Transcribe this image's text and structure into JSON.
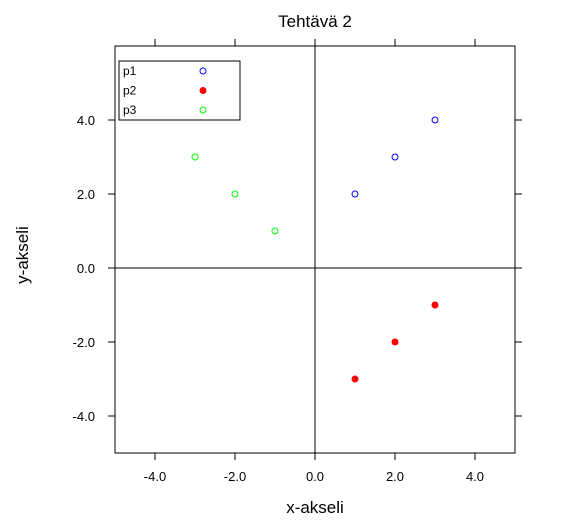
{
  "chart_data": {
    "type": "scatter",
    "title": "Tehtävä 2",
    "xlabel": "x-akseli",
    "ylabel": "y-akseli",
    "xlim": [
      -5,
      5
    ],
    "ylim": [
      -5,
      6
    ],
    "xticks": [
      -4,
      -2,
      0,
      2,
      4
    ],
    "yticks": [
      -4,
      -2,
      0,
      2,
      4
    ],
    "xtick_labels": [
      "-4.0",
      "-2.0",
      "0.0",
      "2.0",
      "4.0"
    ],
    "ytick_labels": [
      "-4.0",
      "-2.0",
      "0.0",
      "2.0",
      "4.0"
    ],
    "reference_lines": {
      "x": 0,
      "y": 0
    },
    "grid": false,
    "legend_position": "top-left",
    "series": [
      {
        "name": "p1",
        "color": "#0000ff",
        "marker": "open-circle",
        "points": [
          [
            1,
            2
          ],
          [
            2,
            3
          ],
          [
            3,
            4
          ]
        ]
      },
      {
        "name": "p2",
        "color": "#ff0000",
        "marker": "filled-circle",
        "points": [
          [
            1,
            -3
          ],
          [
            2,
            -2
          ],
          [
            3,
            -1
          ]
        ]
      },
      {
        "name": "p3",
        "color": "#00ff00",
        "marker": "open-circle",
        "points": [
          [
            -1,
            1
          ],
          [
            -2,
            2
          ],
          [
            -3,
            3
          ]
        ]
      }
    ]
  }
}
